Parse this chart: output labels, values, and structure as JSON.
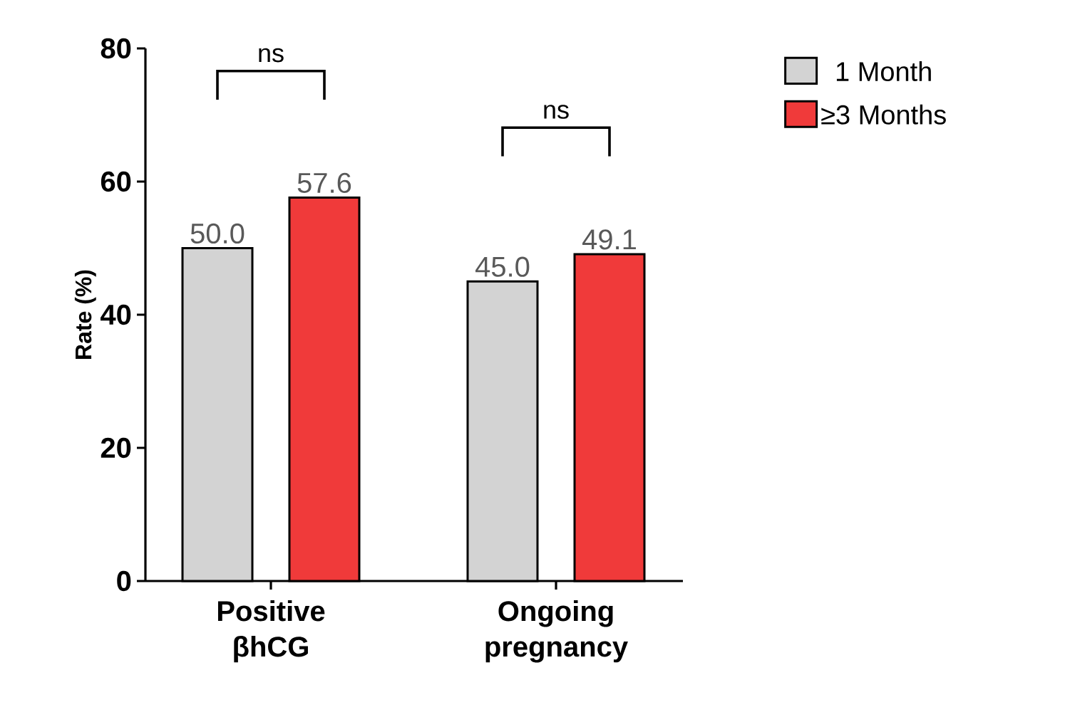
{
  "chart_data": {
    "type": "bar",
    "ylabel": "Rate (%)",
    "categories": [
      "Positive βhCG",
      "Ongoing pregnancy"
    ],
    "series": [
      {
        "name": "1 Month",
        "color": "#d3d3d3",
        "values": [
          50.0,
          45.0
        ],
        "value_labels": [
          "50.0",
          "45.0"
        ]
      },
      {
        "name": "≥3 Months",
        "color": "#f03a3a",
        "values": [
          57.6,
          49.1
        ],
        "value_labels": [
          "57.6",
          "49.1"
        ]
      }
    ],
    "ylim": [
      0,
      80
    ],
    "yticks": [
      0,
      20,
      40,
      60,
      80
    ],
    "legend": "top right",
    "annotations": [
      "ns",
      "ns"
    ]
  }
}
